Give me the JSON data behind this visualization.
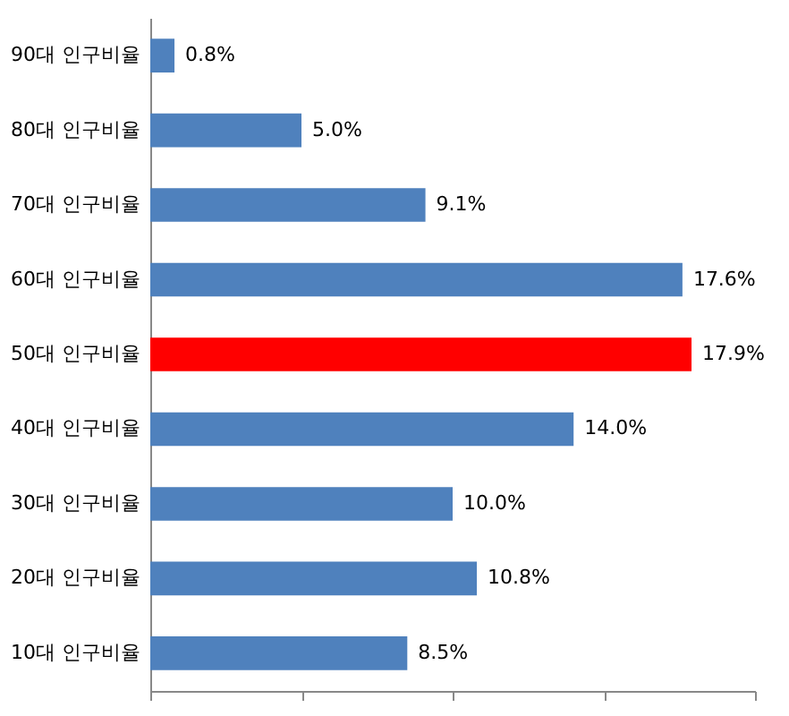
{
  "chart_data": {
    "type": "bar",
    "orientation": "horizontal",
    "categories": [
      "90대 인구비율",
      "80대 인구비율",
      "70대 인구비율",
      "60대 인구비율",
      "50대 인구비율",
      "40대 인구비율",
      "30대 인구비율",
      "20대 인구비율",
      "10대 인구비율"
    ],
    "values": [
      0.8,
      5.0,
      9.1,
      17.6,
      17.9,
      14.0,
      10.0,
      10.8,
      8.5
    ],
    "value_labels": [
      "0.8%",
      "5.0%",
      "9.1%",
      "17.6%",
      "17.9%",
      "14.0%",
      "10.0%",
      "10.8%",
      "8.5%"
    ],
    "colors": [
      "#4f81bd",
      "#4f81bd",
      "#4f81bd",
      "#4f81bd",
      "#ff0000",
      "#4f81bd",
      "#4f81bd",
      "#4f81bd",
      "#4f81bd"
    ],
    "xlim": [
      0,
      20
    ],
    "xticks": [
      {
        "value": 0,
        "label": null
      },
      {
        "value": 5,
        "label": null
      },
      {
        "value": 10,
        "label": null
      },
      {
        "value": 15,
        "label": null
      },
      {
        "value": 20,
        "label": null
      }
    ],
    "tick_labels": "y",
    "grid": false
  }
}
